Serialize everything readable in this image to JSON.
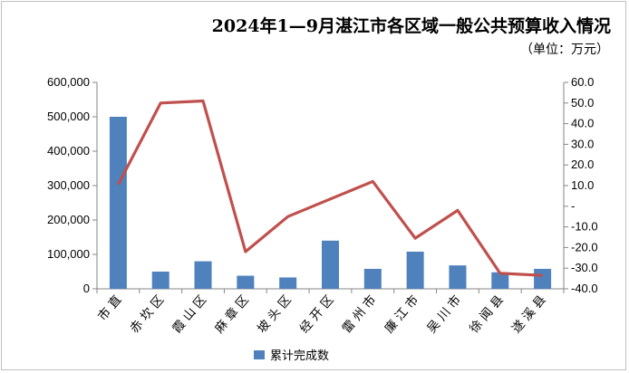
{
  "chart_data": {
    "type": "bar",
    "title": "2024年1—9月湛江市各区域一般公共预算收入情况",
    "unit": "（单位：万元）",
    "categories": [
      "市直",
      "赤坎区",
      "霞山区",
      "麻章区",
      "坡头区",
      "经开区",
      "雷州市",
      "廉江市",
      "吴川市",
      "徐闻县",
      "遂溪县"
    ],
    "series": [
      {
        "name": "累计完成数",
        "type": "bar",
        "axis": "left",
        "color": "#4f81bd",
        "values": [
          500000,
          50000,
          80000,
          38000,
          33000,
          140000,
          58000,
          108000,
          68000,
          48000,
          58000
        ]
      },
      {
        "name": "",
        "type": "line",
        "axis": "right",
        "color": "#c0504d",
        "values": [
          10.5,
          50.0,
          51.0,
          -22.0,
          -5.0,
          3.5,
          12.0,
          -15.5,
          -2.0,
          -32.5,
          -33.5
        ]
      }
    ],
    "ylim_left": [
      0,
      600000
    ],
    "ylim_right": [
      -40,
      60
    ],
    "left_ticks": [
      "0",
      "100,000",
      "200,000",
      "300,000",
      "400,000",
      "500,000",
      "600,000"
    ],
    "right_ticks": [
      "-40.0",
      "-30.0",
      "-20.0",
      "-10.0",
      "-",
      "10.0",
      "20.0",
      "30.0",
      "40.0",
      "50.0",
      "60.0"
    ],
    "legend": {
      "label": "累计完成数",
      "position": "bottom"
    },
    "grid": false
  }
}
